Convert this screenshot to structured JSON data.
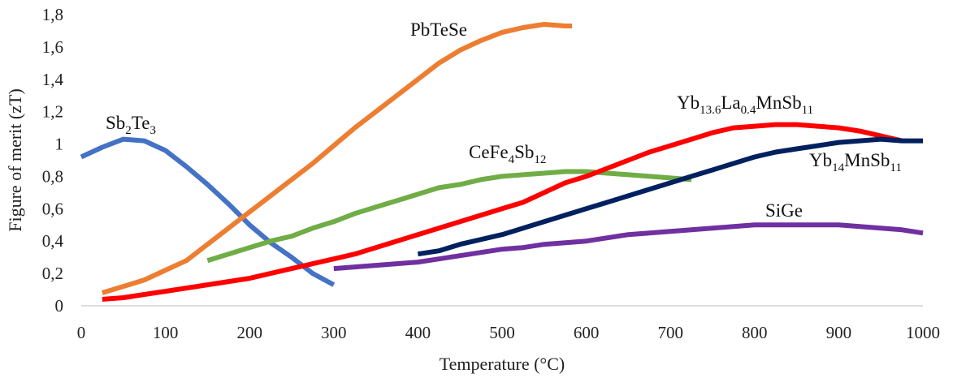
{
  "chart_data": {
    "type": "line",
    "title": "",
    "xlabel": "Temperature (°C)",
    "ylabel": "Figure of merit (zT)",
    "xlim": [
      0,
      1000
    ],
    "ylim": [
      0,
      1.8
    ],
    "x_ticks": [
      "0",
      "100",
      "200",
      "300",
      "400",
      "500",
      "600",
      "700",
      "800",
      "900",
      "1000"
    ],
    "y_ticks": [
      "0",
      "0,2",
      "0,4",
      "0,6",
      "0,8",
      "1",
      "1,2",
      "1,4",
      "1,6",
      "1,8"
    ],
    "grid": false,
    "legend": "none",
    "series": [
      {
        "name": "Sb2Te3",
        "label_parts": [
          {
            "text": "Sb",
            "sub": false
          },
          {
            "text": "2",
            "sub": true
          },
          {
            "text": "Te",
            "sub": false
          },
          {
            "text": "3",
            "sub": true
          }
        ],
        "color": "#4472C4",
        "points": [
          [
            0,
            0.92
          ],
          [
            25,
            0.98
          ],
          [
            50,
            1.03
          ],
          [
            75,
            1.02
          ],
          [
            100,
            0.96
          ],
          [
            125,
            0.86
          ],
          [
            150,
            0.75
          ],
          [
            175,
            0.63
          ],
          [
            200,
            0.5
          ],
          [
            225,
            0.39
          ],
          [
            250,
            0.3
          ],
          [
            275,
            0.2
          ],
          [
            300,
            0.13
          ]
        ]
      },
      {
        "name": "PbTeSe",
        "label_parts": [
          {
            "text": "PbTeSe",
            "sub": false
          }
        ],
        "color": "#ED7D31",
        "points": [
          [
            25,
            0.08
          ],
          [
            50,
            0.12
          ],
          [
            75,
            0.16
          ],
          [
            100,
            0.22
          ],
          [
            125,
            0.28
          ],
          [
            150,
            0.38
          ],
          [
            175,
            0.48
          ],
          [
            200,
            0.58
          ],
          [
            225,
            0.68
          ],
          [
            250,
            0.78
          ],
          [
            275,
            0.88
          ],
          [
            300,
            0.99
          ],
          [
            325,
            1.1
          ],
          [
            350,
            1.2
          ],
          [
            375,
            1.3
          ],
          [
            400,
            1.4
          ],
          [
            425,
            1.5
          ],
          [
            450,
            1.58
          ],
          [
            475,
            1.64
          ],
          [
            500,
            1.69
          ],
          [
            525,
            1.72
          ],
          [
            550,
            1.74
          ],
          [
            575,
            1.73
          ],
          [
            583,
            1.73
          ]
        ]
      },
      {
        "name": "CeFe4Sb12",
        "label_parts": [
          {
            "text": "CeFe",
            "sub": false
          },
          {
            "text": "4",
            "sub": true
          },
          {
            "text": "Sb",
            "sub": false
          },
          {
            "text": "12",
            "sub": true
          }
        ],
        "color": "#70AD47",
        "points": [
          [
            150,
            0.28
          ],
          [
            175,
            0.32
          ],
          [
            200,
            0.36
          ],
          [
            225,
            0.4
          ],
          [
            250,
            0.43
          ],
          [
            275,
            0.48
          ],
          [
            300,
            0.52
          ],
          [
            325,
            0.57
          ],
          [
            350,
            0.61
          ],
          [
            375,
            0.65
          ],
          [
            400,
            0.69
          ],
          [
            425,
            0.73
          ],
          [
            450,
            0.75
          ],
          [
            475,
            0.78
          ],
          [
            500,
            0.8
          ],
          [
            525,
            0.81
          ],
          [
            550,
            0.82
          ],
          [
            575,
            0.83
          ],
          [
            600,
            0.83
          ],
          [
            625,
            0.82
          ],
          [
            650,
            0.81
          ],
          [
            675,
            0.8
          ],
          [
            700,
            0.79
          ],
          [
            725,
            0.78
          ]
        ]
      },
      {
        "name": "Yb13.6La0.4MnSb11",
        "label_parts": [
          {
            "text": "Yb",
            "sub": false
          },
          {
            "text": "13.6",
            "sub": true
          },
          {
            "text": "La",
            "sub": false
          },
          {
            "text": "0.4",
            "sub": true
          },
          {
            "text": "MnSb",
            "sub": false
          },
          {
            "text": "11",
            "sub": true
          }
        ],
        "color": "#FF0000",
        "points": [
          [
            25,
            0.04
          ],
          [
            50,
            0.05
          ],
          [
            75,
            0.07
          ],
          [
            100,
            0.09
          ],
          [
            125,
            0.11
          ],
          [
            150,
            0.13
          ],
          [
            175,
            0.15
          ],
          [
            200,
            0.17
          ],
          [
            225,
            0.2
          ],
          [
            250,
            0.23
          ],
          [
            275,
            0.26
          ],
          [
            300,
            0.29
          ],
          [
            325,
            0.32
          ],
          [
            350,
            0.36
          ],
          [
            375,
            0.4
          ],
          [
            400,
            0.44
          ],
          [
            425,
            0.48
          ],
          [
            450,
            0.52
          ],
          [
            475,
            0.56
          ],
          [
            500,
            0.6
          ],
          [
            525,
            0.64
          ],
          [
            550,
            0.7
          ],
          [
            575,
            0.76
          ],
          [
            600,
            0.8
          ],
          [
            625,
            0.85
          ],
          [
            650,
            0.9
          ],
          [
            675,
            0.95
          ],
          [
            700,
            0.99
          ],
          [
            725,
            1.03
          ],
          [
            750,
            1.07
          ],
          [
            775,
            1.1
          ],
          [
            800,
            1.11
          ],
          [
            825,
            1.12
          ],
          [
            850,
            1.12
          ],
          [
            875,
            1.11
          ],
          [
            900,
            1.1
          ],
          [
            925,
            1.08
          ],
          [
            950,
            1.05
          ],
          [
            975,
            1.02
          ]
        ]
      },
      {
        "name": "Yb14MnSb11",
        "label_parts": [
          {
            "text": "Yb",
            "sub": false
          },
          {
            "text": "14",
            "sub": true
          },
          {
            "text": "MnSb",
            "sub": false
          },
          {
            "text": "11",
            "sub": true
          }
        ],
        "color": "#002060",
        "points": [
          [
            400,
            0.32
          ],
          [
            425,
            0.34
          ],
          [
            450,
            0.38
          ],
          [
            475,
            0.41
          ],
          [
            500,
            0.44
          ],
          [
            525,
            0.48
          ],
          [
            550,
            0.52
          ],
          [
            575,
            0.56
          ],
          [
            600,
            0.6
          ],
          [
            625,
            0.64
          ],
          [
            650,
            0.68
          ],
          [
            675,
            0.72
          ],
          [
            700,
            0.76
          ],
          [
            725,
            0.8
          ],
          [
            750,
            0.84
          ],
          [
            775,
            0.88
          ],
          [
            800,
            0.92
          ],
          [
            825,
            0.95
          ],
          [
            850,
            0.97
          ],
          [
            875,
            0.99
          ],
          [
            900,
            1.01
          ],
          [
            925,
            1.02
          ],
          [
            950,
            1.03
          ],
          [
            975,
            1.02
          ],
          [
            1000,
            1.02
          ]
        ]
      },
      {
        "name": "SiGe",
        "label_parts": [
          {
            "text": "SiGe",
            "sub": false
          }
        ],
        "color": "#7030A0",
        "points": [
          [
            300,
            0.23
          ],
          [
            325,
            0.24
          ],
          [
            350,
            0.25
          ],
          [
            375,
            0.26
          ],
          [
            400,
            0.27
          ],
          [
            425,
            0.29
          ],
          [
            450,
            0.31
          ],
          [
            475,
            0.33
          ],
          [
            500,
            0.35
          ],
          [
            525,
            0.36
          ],
          [
            550,
            0.38
          ],
          [
            575,
            0.39
          ],
          [
            600,
            0.4
          ],
          [
            625,
            0.42
          ],
          [
            650,
            0.44
          ],
          [
            675,
            0.45
          ],
          [
            700,
            0.46
          ],
          [
            725,
            0.47
          ],
          [
            750,
            0.48
          ],
          [
            775,
            0.49
          ],
          [
            800,
            0.5
          ],
          [
            825,
            0.5
          ],
          [
            850,
            0.5
          ],
          [
            875,
            0.5
          ],
          [
            900,
            0.5
          ],
          [
            925,
            0.49
          ],
          [
            950,
            0.48
          ],
          [
            975,
            0.47
          ],
          [
            1000,
            0.45
          ]
        ]
      }
    ]
  }
}
